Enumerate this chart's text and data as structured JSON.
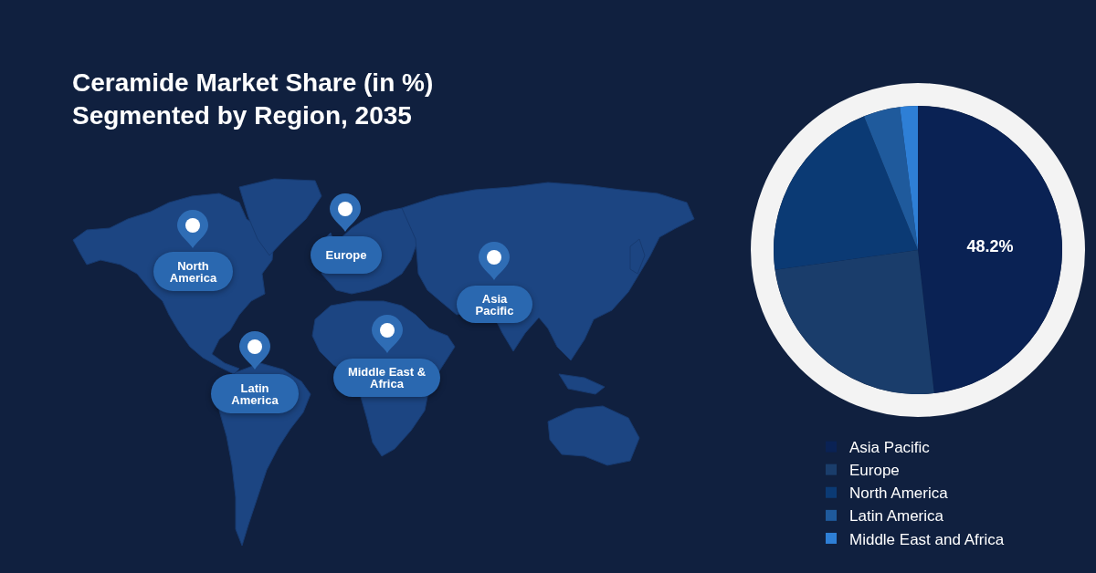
{
  "chart_data": {
    "type": "pie",
    "title": "Ceramide Market Share (in %)\nSegmented by Region, 2035",
    "categories": [
      "Asia Pacific",
      "Europe",
      "North America",
      "Latin America",
      "Middle East and Africa"
    ],
    "values": [
      48.2,
      24.6,
      21.1,
      4.1,
      2.0
    ],
    "colors": [
      "#0a2254",
      "#1a3d6b",
      "#0b3a74",
      "#1f5a9c",
      "#2e7fd6"
    ],
    "value_labels": [
      "48.2%",
      null,
      null,
      null,
      null
    ],
    "legend": "bottom",
    "annotations": [
      "North America",
      "Europe",
      "Asia Pacific",
      "Latin America",
      "Middle East & Africa"
    ]
  }
}
